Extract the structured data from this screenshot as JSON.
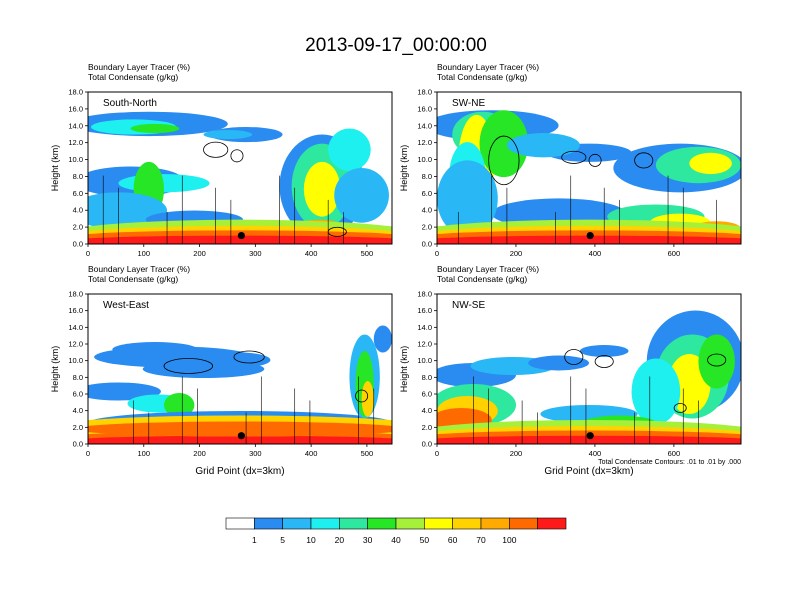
{
  "title": "2013-09-17_00:00:00",
  "palette": [
    "#ffffff",
    "#2a8cf0",
    "#29b8f5",
    "#1ef0f0",
    "#2ee8a0",
    "#26e626",
    "#a6f03a",
    "#ffff00",
    "#ffd200",
    "#ffaa00",
    "#ff6a00",
    "#ff1a1a"
  ],
  "chart_data": [
    {
      "type": "heatmap",
      "panel_label": "South-North",
      "title_line1": "Boundary Layer Tracer   (%)",
      "title_line2": "Total Condensate   (g/kg)",
      "ylabel": "Height (km)",
      "xlabel": "",
      "xlim": [
        0,
        545
      ],
      "ylim": [
        0,
        18
      ],
      "xticks": [
        "0",
        "100",
        "200",
        "300",
        "400",
        "500"
      ],
      "xtick_values": [
        0,
        100,
        200,
        300,
        400,
        500
      ],
      "yticks": [
        "0.0",
        "2.0",
        "4.0",
        "6.0",
        "8.0",
        "10.0",
        "12.0",
        "14.0",
        "16.0",
        "18.0"
      ],
      "marker_x": 275,
      "marker_y": 1.0
    },
    {
      "type": "heatmap",
      "panel_label": "SW-NE",
      "title_line1": "Boundary Layer Tracer   (%)",
      "title_line2": "Total Condensate   (g/kg)",
      "ylabel": "Height (km)",
      "xlabel": "",
      "xlim": [
        0,
        770
      ],
      "ylim": [
        0,
        18
      ],
      "xticks": [
        "0",
        "200",
        "400",
        "600"
      ],
      "xtick_values": [
        0,
        200,
        400,
        600
      ],
      "yticks": [
        "0.0",
        "2.0",
        "4.0",
        "6.0",
        "8.0",
        "10.0",
        "12.0",
        "14.0",
        "16.0",
        "18.0"
      ],
      "marker_x": 388,
      "marker_y": 1.0
    },
    {
      "type": "heatmap",
      "panel_label": "West-East",
      "title_line1": "Boundary Layer Tracer   (%)",
      "title_line2": "Total Condensate   (g/kg)",
      "ylabel": "Height (km)",
      "xlabel": "Grid Point (dx=3km)",
      "xlim": [
        0,
        545
      ],
      "ylim": [
        0,
        18
      ],
      "xticks": [
        "0",
        "100",
        "200",
        "300",
        "400",
        "500"
      ],
      "xtick_values": [
        0,
        100,
        200,
        300,
        400,
        500
      ],
      "yticks": [
        "0.0",
        "2.0",
        "4.0",
        "6.0",
        "8.0",
        "10.0",
        "12.0",
        "14.0",
        "16.0",
        "18.0"
      ],
      "marker_x": 275,
      "marker_y": 1.0
    },
    {
      "type": "heatmap",
      "panel_label": "NW-SE",
      "title_line1": "Boundary Layer Tracer   (%)",
      "title_line2": "Total Condensate   (g/kg)",
      "ylabel": "Height (km)",
      "xlabel": "Grid Point (dx=3km)",
      "xlim": [
        0,
        770
      ],
      "ylim": [
        0,
        18
      ],
      "xticks": [
        "0",
        "200",
        "400",
        "600"
      ],
      "xtick_values": [
        0,
        200,
        400,
        600
      ],
      "yticks": [
        "0.0",
        "2.0",
        "4.0",
        "6.0",
        "8.0",
        "10.0",
        "12.0",
        "14.0",
        "16.0",
        "18.0"
      ],
      "marker_x": 388,
      "marker_y": 1.0,
      "note": "Total Condensate Contours: .01 to .01 by .000"
    }
  ],
  "colorbar": {
    "labels": [
      "1",
      "5",
      "10",
      "20",
      "30",
      "40",
      "50",
      "60",
      "70",
      "100"
    ],
    "values": [
      1,
      5,
      10,
      20,
      30,
      40,
      50,
      60,
      70,
      100
    ],
    "colors": [
      "#ffffff",
      "#2a8cf0",
      "#29b8f5",
      "#1ef0f0",
      "#2ee8a0",
      "#26e626",
      "#a6f03a",
      "#ffff00",
      "#ffd200",
      "#ffaa00",
      "#ff6a00",
      "#ff1a1a"
    ]
  }
}
